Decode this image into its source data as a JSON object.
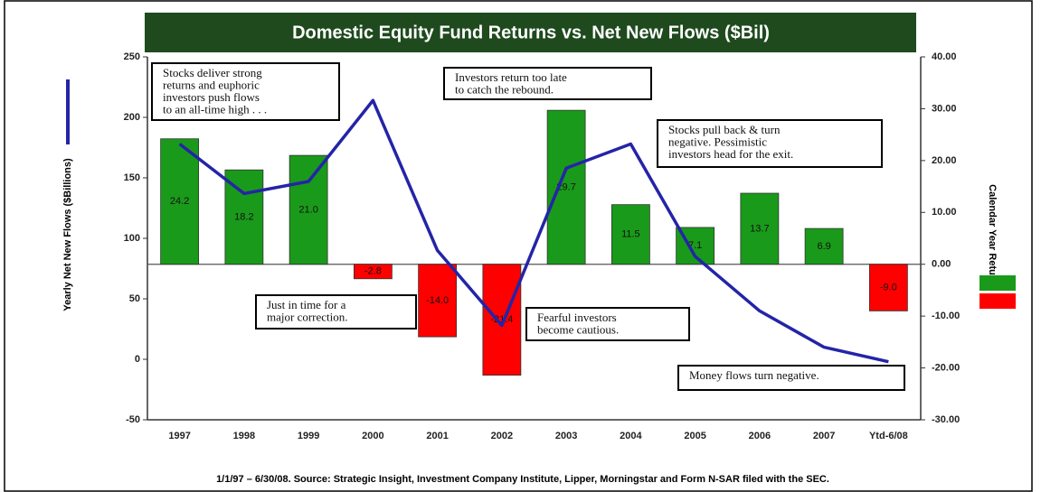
{
  "chart_data": {
    "type": "combo",
    "title": "Domestic Equity Fund Returns vs. Net New Flows ($Bil)",
    "y_label": "Yearly Net New Flows ($Billions)",
    "y2_label": "Calendar Year Return",
    "footer": "1/1/97 – 6/30/08.  Source: Strategic Insight, Investment Company Institute, Lipper, Morningstar and Form N-SAR filed with the SEC.",
    "categories": [
      "1997",
      "1998",
      "1999",
      "2000",
      "2001",
      "2002",
      "2003",
      "2004",
      "2005",
      "2006",
      "2007",
      "Ytd-6/08"
    ],
    "series": [
      {
        "type": "bar",
        "axis": "y2",
        "color": "#1a9a1a",
        "negative_color": "#ff0000",
        "values": [
          24.2,
          18.2,
          21.0,
          -2.8,
          -14.0,
          -21.4,
          29.7,
          11.5,
          7.1,
          13.7,
          6.9,
          -9.0
        ],
        "value_labels": [
          "24.2",
          "18.2",
          "21.0",
          "-2.8",
          "-14.0",
          "-21.4",
          "29.7",
          "11.5",
          "7.1",
          "13.7",
          "6.9",
          "-9.0"
        ]
      },
      {
        "type": "line",
        "color": "#2424a8",
        "values": [
          178,
          137,
          147,
          214,
          90,
          28,
          158,
          178,
          85,
          40,
          10,
          -2
        ]
      }
    ],
    "ylim": [
      -50,
      250
    ],
    "yticks": [
      -50,
      0,
      50,
      100,
      150,
      200,
      250
    ],
    "y2lim": [
      -30,
      40
    ],
    "y2ticks": [
      {
        "value": -30,
        "label": "-30.00"
      },
      {
        "value": -20,
        "label": "-20.00"
      },
      {
        "value": -10,
        "label": "-10.00"
      },
      {
        "value": 0,
        "label": "0.00"
      },
      {
        "value": 10,
        "label": "10.00"
      },
      {
        "value": 20,
        "label": "20.00"
      },
      {
        "value": 30,
        "label": "30.00"
      },
      {
        "value": 40,
        "label": "40.00"
      }
    ],
    "annotations": [
      [
        "Stocks deliver strong",
        "returns and euphoric",
        "investors push flows",
        "to an all-time high . . ."
      ],
      [
        "Investors return too late",
        "to catch the rebound."
      ],
      [
        "Stocks pull back & turn",
        "negative. Pessimistic",
        "investors head for the exit."
      ],
      [
        "Just in time for a",
        "major correction."
      ],
      [
        "Fearful investors",
        "become cautious."
      ],
      [
        "Money flows turn negative."
      ]
    ]
  }
}
